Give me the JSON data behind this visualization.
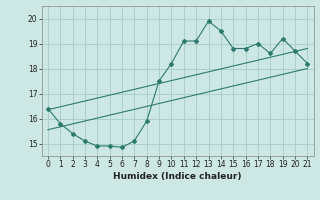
{
  "xlabel": "Humidex (Indice chaleur)",
  "ylabel": "",
  "xlim": [
    -0.5,
    21.5
  ],
  "ylim": [
    14.5,
    20.5
  ],
  "yticks": [
    15,
    16,
    17,
    18,
    19,
    20
  ],
  "xticks": [
    0,
    1,
    2,
    3,
    4,
    5,
    6,
    7,
    8,
    9,
    10,
    11,
    12,
    13,
    14,
    15,
    16,
    17,
    18,
    19,
    20,
    21
  ],
  "bg_color": "#cde8e4",
  "grid_color": "#aacfc9",
  "line_color": "#2d7a6e",
  "line1_x": [
    0,
    1,
    2,
    3,
    4,
    5,
    6,
    7,
    8,
    9,
    10,
    11,
    12,
    13,
    14,
    15,
    16,
    17,
    18,
    19,
    20,
    21
  ],
  "line1_y": [
    16.4,
    15.8,
    15.4,
    15.1,
    14.9,
    14.9,
    14.85,
    15.1,
    15.9,
    17.5,
    18.2,
    19.1,
    19.1,
    19.9,
    19.5,
    18.8,
    18.8,
    19.0,
    18.6,
    19.2,
    18.7,
    18.2
  ],
  "line2_x": [
    0,
    21
  ],
  "line2_y": [
    15.55,
    18.0
  ],
  "line3_x": [
    0,
    21
  ],
  "line3_y": [
    16.35,
    18.8
  ]
}
